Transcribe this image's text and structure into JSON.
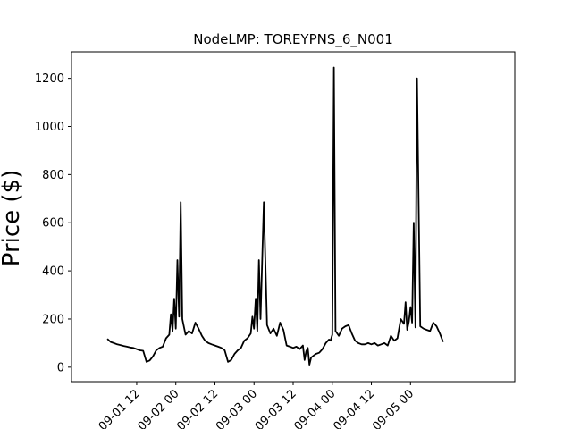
{
  "chart_data": {
    "type": "line",
    "title": "NodeLMP: TOREYPNS_6_N001",
    "xlabel": "",
    "ylabel": "Price ($)",
    "grid": false,
    "legend": "none",
    "ylim": [
      -60,
      1310
    ],
    "xlim_hours": [
      -8,
      128
    ],
    "yticks": [
      0,
      200,
      400,
      600,
      800,
      1000,
      1200
    ],
    "xticks": [
      {
        "hour": 12,
        "label": "09-01 12"
      },
      {
        "hour": 24,
        "label": "09-02 00"
      },
      {
        "hour": 36,
        "label": "09-02 12"
      },
      {
        "hour": 48,
        "label": "09-03 00"
      },
      {
        "hour": 60,
        "label": "09-03 12"
      },
      {
        "hour": 72,
        "label": "09-04 00"
      },
      {
        "hour": 84,
        "label": "09-04 12"
      },
      {
        "hour": 96,
        "label": "09-05 00"
      }
    ],
    "line_color": "#000000",
    "series": [
      {
        "name": "",
        "x_hours": [
          3,
          4,
          5,
          6,
          7,
          8,
          9,
          10,
          11,
          12,
          13,
          14,
          15,
          15.5,
          16,
          17,
          18,
          19,
          20,
          21,
          22,
          22.5,
          23,
          23.5,
          24,
          24.5,
          25,
          25.5,
          26,
          27,
          28,
          29,
          30,
          31,
          32,
          33,
          34,
          35,
          36,
          37,
          38,
          38.5,
          39,
          40,
          41,
          42,
          43,
          44,
          45,
          46,
          47,
          47.5,
          48,
          48.5,
          49,
          49.5,
          50,
          51,
          52,
          53,
          54,
          55,
          56,
          57,
          58,
          59,
          60,
          61,
          62,
          63,
          63.5,
          64,
          64.5,
          65,
          65.5,
          66,
          67,
          68,
          69,
          70,
          71,
          71.5,
          72,
          72.5,
          73,
          74,
          75,
          76,
          77,
          78,
          79,
          80,
          81,
          82,
          83,
          84,
          85,
          86,
          87,
          88,
          89,
          90,
          91,
          92,
          93,
          94,
          94.5,
          95,
          95.5,
          96,
          96.5,
          97,
          97.5,
          98,
          99,
          100,
          101,
          102,
          103,
          104,
          105,
          106
        ],
        "values": [
          118,
          105,
          100,
          95,
          92,
          88,
          85,
          82,
          80,
          75,
          70,
          68,
          22,
          25,
          28,
          45,
          70,
          80,
          85,
          120,
          135,
          220,
          150,
          285,
          160,
          445,
          210,
          685,
          200,
          135,
          150,
          140,
          185,
          160,
          130,
          110,
          100,
          95,
          90,
          85,
          80,
          75,
          70,
          22,
          30,
          55,
          70,
          80,
          110,
          120,
          140,
          210,
          160,
          285,
          150,
          445,
          200,
          685,
          175,
          140,
          160,
          130,
          185,
          155,
          90,
          85,
          80,
          85,
          75,
          90,
          30,
          65,
          80,
          10,
          40,
          45,
          55,
          60,
          75,
          100,
          115,
          110,
          135,
          1245,
          150,
          130,
          160,
          170,
          175,
          140,
          110,
          100,
          95,
          95,
          100,
          95,
          100,
          90,
          95,
          100,
          90,
          130,
          110,
          120,
          200,
          180,
          270,
          155,
          190,
          250,
          185,
          600,
          165,
          1200,
          170,
          160,
          155,
          150,
          185,
          170,
          140,
          105
        ]
      }
    ]
  }
}
